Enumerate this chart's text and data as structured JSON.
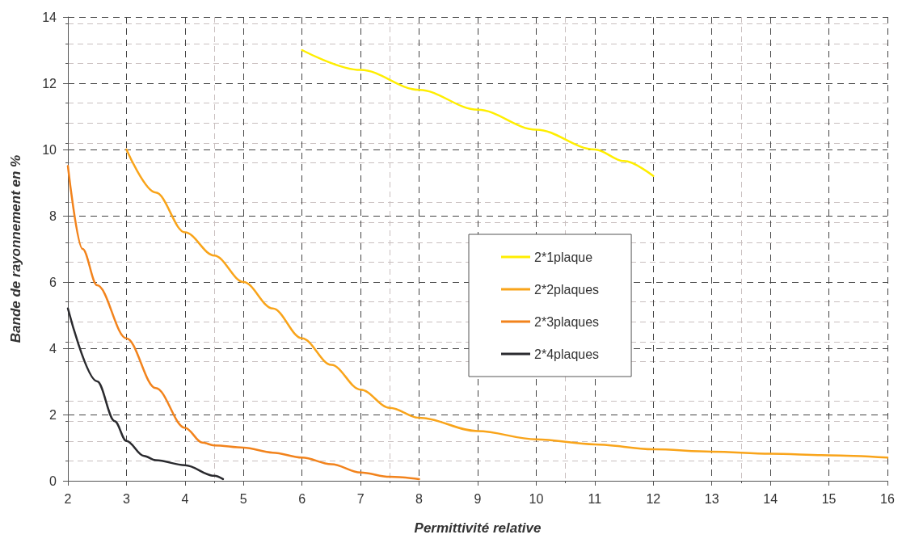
{
  "chart_data": {
    "type": "line",
    "xlabel": "Permittivité relative",
    "ylabel": "Bande de rayonnement en %",
    "xlim": [
      2,
      16
    ],
    "xticks": [
      2,
      3,
      4,
      5,
      6,
      7,
      8,
      9,
      10,
      11,
      12,
      13,
      14,
      15,
      16
    ],
    "ylim": [
      0,
      14
    ],
    "yticks": [
      0,
      2,
      4,
      6,
      8,
      10,
      12,
      14
    ],
    "grid": true,
    "legend": "center",
    "marker": "none",
    "line_style": "solid",
    "series": [
      {
        "name": "2*1plaque",
        "color": "#ffee00",
        "x": [
          6,
          7,
          8,
          9,
          10,
          11,
          11.5,
          12
        ],
        "values": [
          13.0,
          12.4,
          11.8,
          11.2,
          10.6,
          10.0,
          9.65,
          9.2
        ]
      },
      {
        "name": "2*2plaques",
        "color": "#f9a41a",
        "x": [
          3,
          3.5,
          4,
          4.5,
          5,
          5.5,
          6,
          6.5,
          7,
          7.5,
          8,
          9,
          10,
          11,
          12,
          13,
          14,
          15,
          16
        ],
        "values": [
          10.0,
          8.7,
          7.5,
          6.8,
          6.0,
          5.2,
          4.3,
          3.5,
          2.75,
          2.2,
          1.9,
          1.5,
          1.25,
          1.1,
          0.95,
          0.88,
          0.82,
          0.77,
          0.7
        ]
      },
      {
        "name": "2*3plaques",
        "color": "#f2831c",
        "x": [
          2,
          2.25,
          2.5,
          3,
          3.5,
          4,
          4.3,
          4.5,
          5,
          5.5,
          6,
          6.5,
          7,
          7.5,
          8
        ],
        "values": [
          9.5,
          7.0,
          5.9,
          4.3,
          2.8,
          1.6,
          1.15,
          1.07,
          1.0,
          0.85,
          0.7,
          0.5,
          0.25,
          0.12,
          0.05
        ]
      },
      {
        "name": "2*4plaques",
        "color": "#2a2a2e",
        "x": [
          2,
          2.5,
          2.8,
          3,
          3.3,
          3.5,
          4,
          4.5,
          4.65
        ],
        "values": [
          5.2,
          3.0,
          1.8,
          1.2,
          0.75,
          0.62,
          0.47,
          0.15,
          0.05
        ]
      }
    ]
  }
}
